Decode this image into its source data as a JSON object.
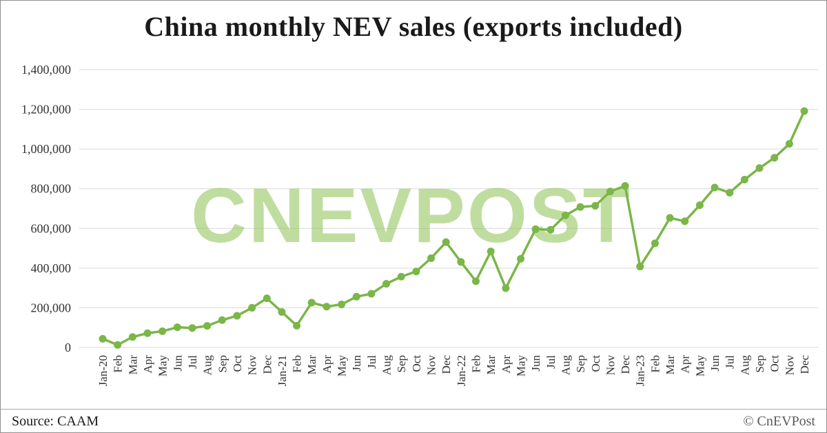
{
  "title": "China monthly NEV sales (exports included)",
  "watermark": {
    "text": "CNEVPOST"
  },
  "footer": {
    "source": "Source: CAAM",
    "credit": "© CnEVPost"
  },
  "colors": {
    "line": "#7AB648",
    "marker": "#7AB648",
    "grid": "#D9D9D9",
    "watermark": "#8CC152"
  },
  "chart_data": {
    "type": "line",
    "title": "China monthly NEV sales (exports included)",
    "xlabel": "",
    "ylabel": "",
    "ylim": [
      0,
      1400000
    ],
    "ytick_step": 200000,
    "ytick_labels": [
      "0",
      "200,000",
      "400,000",
      "600,000",
      "800,000",
      "1,000,000",
      "1,200,000",
      "1,400,000"
    ],
    "grid": true,
    "legend": false,
    "x": [
      "Jan-20",
      "Feb",
      "Mar",
      "Apr",
      "May",
      "Jun",
      "Jul",
      "Aug",
      "Sep",
      "Oct",
      "Nov",
      "Dec",
      "Jan-21",
      "Feb",
      "Mar",
      "Apr",
      "May",
      "Jun",
      "Jul",
      "Aug",
      "Sep",
      "Oct",
      "Nov",
      "Dec",
      "Jan-22",
      "Feb",
      "Mar",
      "Apr",
      "May",
      "Jun",
      "Jul",
      "Aug",
      "Sep",
      "Oct",
      "Nov",
      "Dec",
      "Jan-23",
      "Feb",
      "Mar",
      "Apr",
      "May",
      "Jun",
      "Jul",
      "Aug",
      "Sep",
      "Oct",
      "Nov",
      "Dec"
    ],
    "values": [
      44000,
      13000,
      53000,
      72000,
      82000,
      102000,
      98000,
      109000,
      138000,
      160000,
      200000,
      248000,
      179000,
      110000,
      226000,
      206000,
      217000,
      256000,
      271000,
      321000,
      357000,
      383000,
      450000,
      531000,
      431000,
      334000,
      484000,
      299000,
      447000,
      596000,
      593000,
      666000,
      708000,
      714000,
      786000,
      814000,
      408000,
      525000,
      653000,
      636000,
      717000,
      806000,
      780000,
      846000,
      904000,
      956000,
      1026000,
      1191000
    ]
  }
}
